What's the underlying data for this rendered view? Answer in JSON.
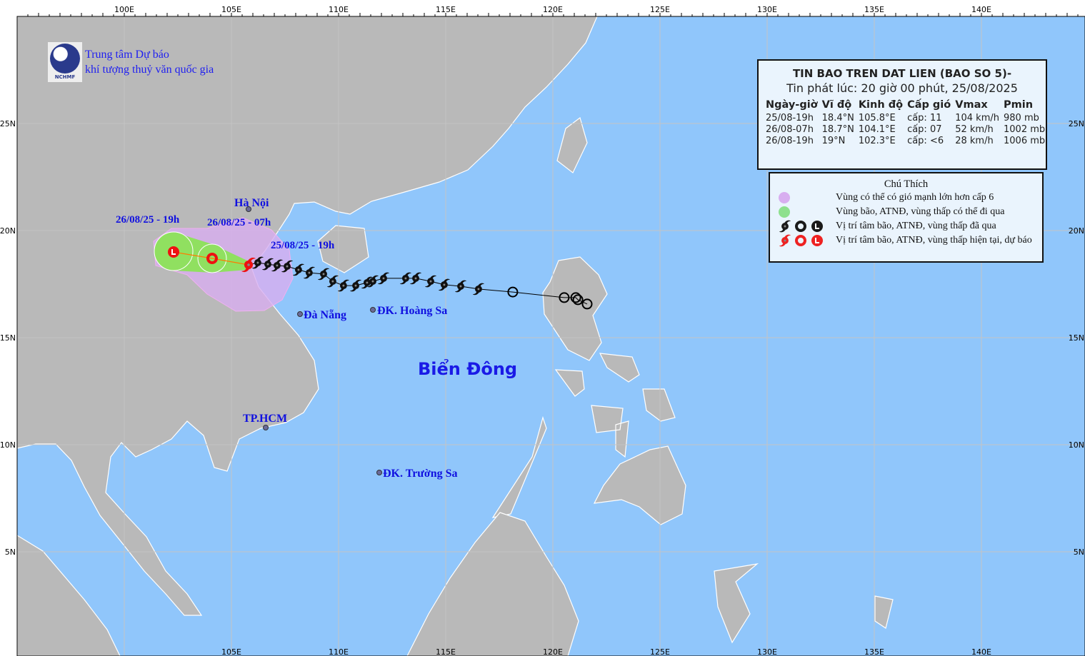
{
  "header": {
    "org_line1": "Trung tâm Dự báo",
    "org_line2": "khí tượng thuỷ văn quốc gia",
    "logo_text": "NCHMF"
  },
  "bulletin": {
    "title": "TIN BAO TREN DAT LIEN (BAO SO 5)-",
    "issued": "Tin phát lúc: 20 giờ 00 phút, 25/08/2025",
    "columns": [
      "Ngày-giờ",
      "Vĩ độ",
      "Kinh độ",
      "Cấp gió",
      "Vmax",
      "Pmin"
    ],
    "rows": [
      [
        "25/08-19h",
        "18.4°N",
        "105.8°E",
        "cấp: 11",
        "104 km/h",
        "980 mb"
      ],
      [
        "26/08-07h",
        "18.7°N",
        "104.1°E",
        "cấp: 07",
        "52 km/h",
        "1002 mb"
      ],
      [
        "26/08-19h",
        "19°N",
        "102.3°E",
        "cấp: <6",
        "28 km/h",
        "1006 mb"
      ]
    ]
  },
  "legend": {
    "title": "Chú Thích",
    "items": [
      {
        "label": "Vùng có thể có gió mạnh lớn hơn cấp 6",
        "color": "#d8aef0"
      },
      {
        "label": "Vùng bão, ATNĐ, vùng thấp có thể đi qua",
        "color": "#8ee08e"
      },
      {
        "label": "Vị trí tâm bão, ATNĐ, vùng thấp đã qua",
        "color": "#1a1a1a"
      },
      {
        "label": "Vị trí tâm bão, ATNĐ, vùng thấp hiện tại, dự báo",
        "color": "#ee2222"
      }
    ]
  },
  "map": {
    "colors": {
      "sea": "#90c6fb",
      "land": "#b9b9b9",
      "coast": "#ffffff",
      "grid": "#c4c4c4",
      "labels": "#1010e0"
    },
    "top_lon_labels": [
      "100E",
      "105E",
      "110E",
      "115E",
      "120E",
      "125E",
      "130E",
      "135E",
      "140E"
    ],
    "bottom_lon_labels": [
      "105E",
      "110E",
      "115E",
      "120E",
      "125E",
      "130E",
      "135E",
      "140E"
    ],
    "lat_labels": [
      "25N",
      "20N",
      "15N",
      "10N",
      "5N"
    ],
    "sea_name": "Biển Đông",
    "places": [
      {
        "name": "Hà Nội",
        "lat": 21.0,
        "lon": 105.8
      },
      {
        "name": "Đà Nẵng",
        "lat": 16.1,
        "lon": 108.2
      },
      {
        "name": "ĐK. Hoàng Sa",
        "lat": 16.3,
        "lon": 111.6
      },
      {
        "name": "TP.HCM",
        "lat": 10.8,
        "lon": 106.6
      },
      {
        "name": "ĐK. Trường Sa",
        "lat": 8.7,
        "lon": 111.9
      }
    ],
    "forecast_labels": [
      "26/08/25 - 19h",
      "26/08/25 - 07h",
      "25/08/25 - 19h"
    ],
    "forecast_points": [
      {
        "time": "25/08-19h",
        "lat": 18.4,
        "lon": 105.8,
        "type": "storm"
      },
      {
        "time": "26/08-07h",
        "lat": 18.7,
        "lon": 104.1,
        "type": "depression"
      },
      {
        "time": "26/08-19h",
        "lat": 19.0,
        "lon": 102.3,
        "type": "low"
      }
    ],
    "past_track": [
      {
        "lat": 16.57,
        "lon": 121.6,
        "type": "depression"
      },
      {
        "lat": 16.77,
        "lon": 121.17,
        "type": "depression"
      },
      {
        "lat": 16.87,
        "lon": 121.07,
        "type": "depression"
      },
      {
        "lat": 16.87,
        "lon": 120.53,
        "type": "depression"
      },
      {
        "lat": 17.13,
        "lon": 118.13,
        "type": "depression"
      },
      {
        "lat": 17.27,
        "lon": 116.53,
        "type": "storm"
      },
      {
        "lat": 17.4,
        "lon": 115.7,
        "type": "storm"
      },
      {
        "lat": 17.47,
        "lon": 114.93,
        "type": "storm"
      },
      {
        "lat": 17.63,
        "lon": 114.3,
        "type": "storm"
      },
      {
        "lat": 17.77,
        "lon": 113.6,
        "type": "storm"
      },
      {
        "lat": 17.77,
        "lon": 113.13,
        "type": "storm"
      },
      {
        "lat": 17.77,
        "lon": 112.1,
        "type": "storm"
      },
      {
        "lat": 17.63,
        "lon": 111.6,
        "type": "storm"
      },
      {
        "lat": 17.57,
        "lon": 111.33,
        "type": "storm"
      },
      {
        "lat": 17.43,
        "lon": 110.8,
        "type": "storm"
      },
      {
        "lat": 17.43,
        "lon": 110.23,
        "type": "storm"
      },
      {
        "lat": 17.63,
        "lon": 109.73,
        "type": "storm"
      },
      {
        "lat": 17.97,
        "lon": 109.3,
        "type": "storm"
      },
      {
        "lat": 18.03,
        "lon": 108.63,
        "type": "storm"
      },
      {
        "lat": 18.17,
        "lon": 108.13,
        "type": "storm"
      },
      {
        "lat": 18.33,
        "lon": 107.6,
        "type": "storm"
      },
      {
        "lat": 18.37,
        "lon": 107.13,
        "type": "storm"
      },
      {
        "lat": 18.43,
        "lon": 106.7,
        "type": "storm"
      },
      {
        "lat": 18.5,
        "lon": 106.23,
        "type": "storm"
      }
    ]
  }
}
